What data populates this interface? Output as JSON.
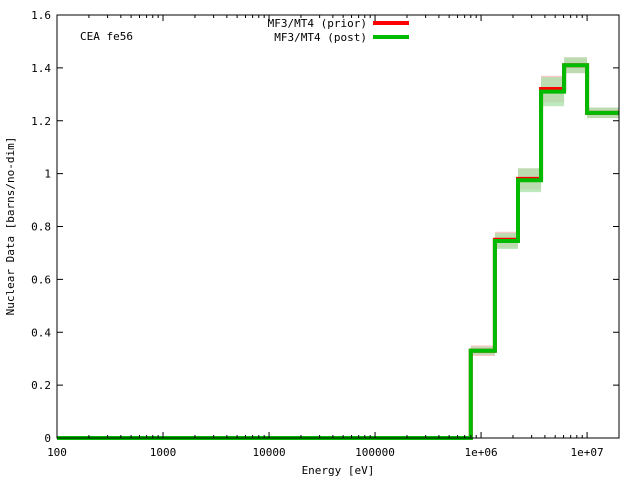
{
  "chart_data": {
    "type": "line",
    "annotation": "CEA fe56",
    "xlabel": "Energy [eV]",
    "ylabel": "Nuclear Data [barns/no-dim]",
    "x_scale": "log",
    "xlim": [
      100,
      20000000
    ],
    "ylim": [
      0,
      1.6
    ],
    "x_ticks": [
      {
        "value": 100,
        "label": "100"
      },
      {
        "value": 1000,
        "label": "1000"
      },
      {
        "value": 10000,
        "label": "10000"
      },
      {
        "value": 100000,
        "label": "100000"
      },
      {
        "value": 1000000,
        "label": "1e+06"
      },
      {
        "value": 10000000,
        "label": "1e+07"
      }
    ],
    "y_ticks": [
      {
        "value": 0,
        "label": "0"
      },
      {
        "value": 0.2,
        "label": "0.2"
      },
      {
        "value": 0.4,
        "label": "0.4"
      },
      {
        "value": 0.6,
        "label": "0.6"
      },
      {
        "value": 0.8,
        "label": "0.8"
      },
      {
        "value": 1.0,
        "label": "1"
      },
      {
        "value": 1.2,
        "label": "1.2"
      },
      {
        "value": 1.4,
        "label": "1.4"
      },
      {
        "value": 1.6,
        "label": "1.6"
      }
    ],
    "grid": false,
    "legend_position": "top-center",
    "bin_edges": [
      100,
      800000,
      1350000,
      2230000,
      3680000,
      6070000,
      10000000,
      20000000
    ],
    "series": [
      {
        "name": "MF3/MT4 (prior)",
        "color": "#ff0000",
        "band_color": "#f4b8b8",
        "values": [
          0,
          0.33,
          0.75,
          0.98,
          1.32,
          1.41,
          1.23
        ],
        "uncertainty": [
          0,
          0.02,
          0.03,
          0.04,
          0.05,
          0.03,
          0.02
        ]
      },
      {
        "name": "MF3/MT4 (post)",
        "color": "#00bb00",
        "band_color": "#a8e0a8",
        "values": [
          0,
          0.33,
          0.745,
          0.975,
          1.31,
          1.41,
          1.23
        ],
        "uncertainty": [
          0,
          0.015,
          0.03,
          0.045,
          0.055,
          0.03,
          0.02
        ]
      }
    ]
  }
}
